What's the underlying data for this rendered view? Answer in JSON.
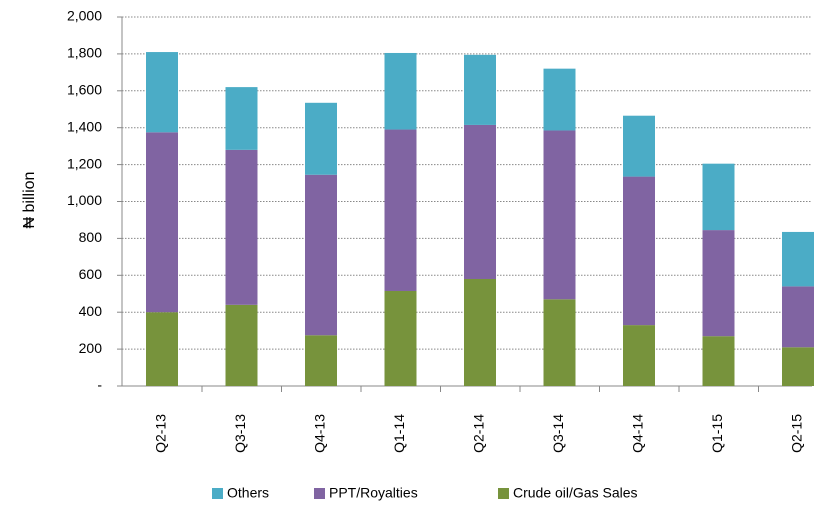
{
  "chart_data": {
    "type": "stacked_bar",
    "ylabel": "₦ billion",
    "categories": [
      "Q2-13",
      "Q3-13",
      "Q4-13",
      "Q1-14",
      "Q2-14",
      "Q3-14",
      "Q4-14",
      "Q1-15",
      "Q2-15"
    ],
    "series": [
      {
        "name": "Crude oil/Gas Sales",
        "color": "#77933c",
        "values": [
          400,
          440,
          275,
          515,
          580,
          470,
          330,
          270,
          210
        ]
      },
      {
        "name": "PPT/Royalties",
        "color": "#8064a2",
        "values": [
          975,
          840,
          870,
          875,
          835,
          915,
          805,
          575,
          330
        ]
      },
      {
        "name": "Others",
        "color": "#4bacc6",
        "values": [
          435,
          340,
          390,
          415,
          380,
          335,
          330,
          360,
          295
        ]
      }
    ],
    "legend_order": [
      "Others",
      "PPT/Royalties",
      "Crude oil/Gas Sales"
    ],
    "ylim": [
      0,
      2000
    ],
    "yticks": [
      {
        "value": 0,
        "label": "-"
      },
      200,
      400,
      600,
      800,
      {
        "value": 1000,
        "label": "1,000"
      },
      {
        "value": 1200,
        "label": "1,200"
      },
      {
        "value": 1400,
        "label": "1,400"
      },
      {
        "value": 1600,
        "label": "1,600"
      },
      {
        "value": 1800,
        "label": "1,800"
      },
      {
        "value": 2000,
        "label": "2,000"
      }
    ],
    "grid": true,
    "legend": "bottom"
  }
}
